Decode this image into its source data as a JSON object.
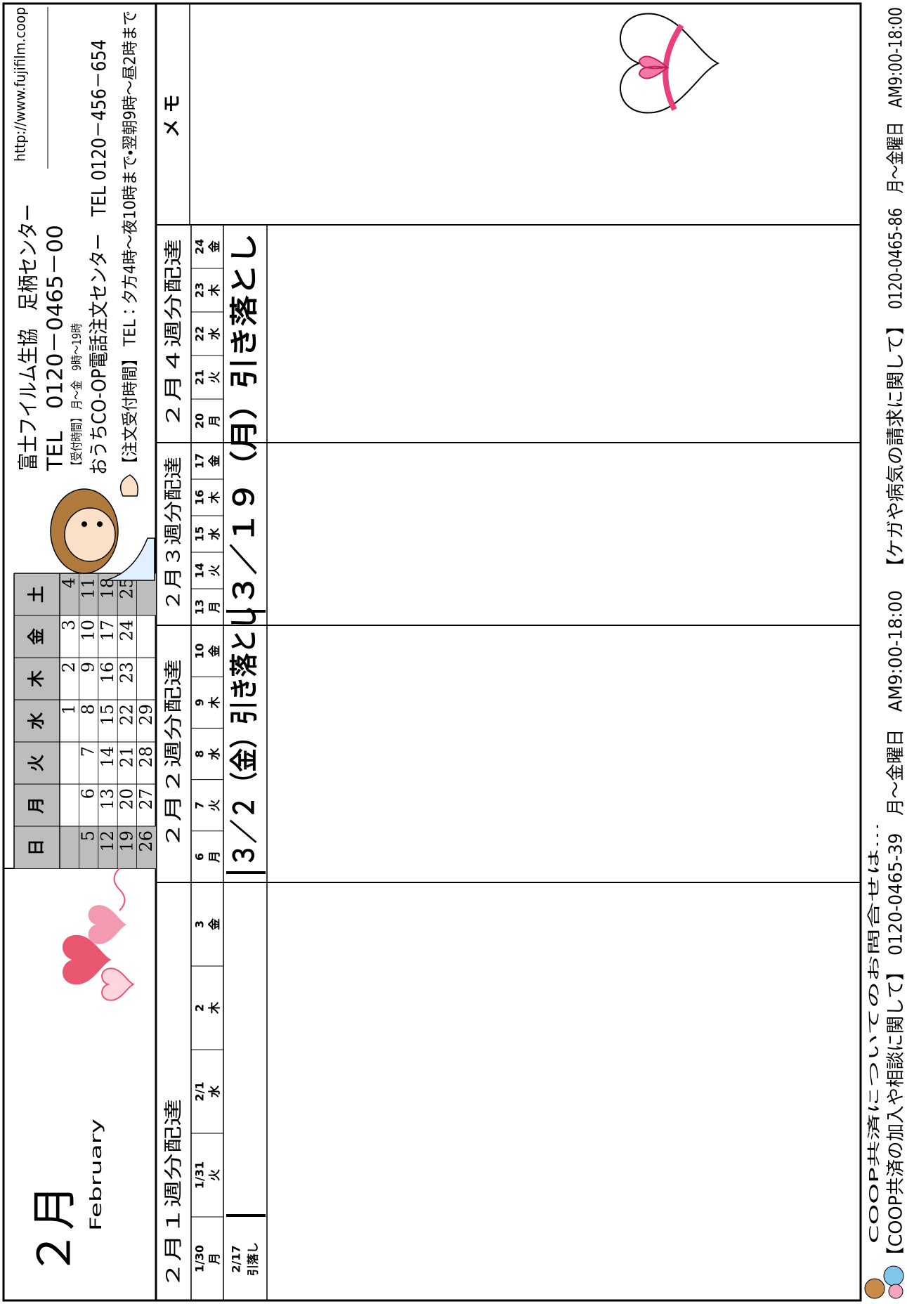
{
  "header": {
    "month": "２月",
    "month_en": "February"
  },
  "calendar": {
    "weekdays": [
      "日",
      "月",
      "火",
      "水",
      "木",
      "金",
      "土"
    ],
    "weeks": [
      [
        null,
        null,
        null,
        1,
        2,
        3,
        4
      ],
      [
        5,
        6,
        7,
        8,
        9,
        10,
        11
      ],
      [
        12,
        13,
        14,
        15,
        16,
        17,
        18
      ],
      [
        19,
        20,
        21,
        22,
        23,
        24,
        25
      ],
      [
        26,
        27,
        28,
        29,
        null,
        null,
        null
      ]
    ]
  },
  "contact": {
    "center": "富士フイルム生協　足柄センター",
    "tel": "TEL　0120－0465－00",
    "hours": "【受付時間】 月～金　9時～19時",
    "url": "http://www.fujifilm.coop",
    "order_center": "おうちCO-OP電話注文センター　TEL 0120－456－654",
    "order_hours": "【注文受付時間】 TEL：夕方4時～夜10時まで・翌朝9時～昼2時まで"
  },
  "weeks": [
    {
      "title": "２月１週分配達",
      "days": [
        {
          "date": "1/30",
          "weekday": "月"
        },
        {
          "date": "1/31",
          "weekday": "火"
        },
        {
          "date": "2/1",
          "weekday": "水"
        },
        {
          "date": "2",
          "weekday": "木"
        },
        {
          "date": "3",
          "weekday": "金"
        }
      ],
      "debit": [
        "2/17",
        "引落し"
      ]
    },
    {
      "title": "２月２週分配達",
      "days": [
        {
          "date": "6",
          "weekday": "月"
        },
        {
          "date": "7",
          "weekday": "火"
        },
        {
          "date": "8",
          "weekday": "水"
        },
        {
          "date": "9",
          "weekday": "木"
        },
        {
          "date": "10",
          "weekday": "金"
        }
      ]
    },
    {
      "title": "２月３週分配達",
      "days": [
        {
          "date": "13",
          "weekday": "月"
        },
        {
          "date": "14",
          "weekday": "火"
        },
        {
          "date": "15",
          "weekday": "水"
        },
        {
          "date": "16",
          "weekday": "木"
        },
        {
          "date": "17",
          "weekday": "金"
        }
      ]
    },
    {
      "title": "２月４週分配達",
      "days": [
        {
          "date": "20",
          "weekday": "月"
        },
        {
          "date": "21",
          "weekday": "火"
        },
        {
          "date": "22",
          "weekday": "水"
        },
        {
          "date": "23",
          "weekday": "木"
        },
        {
          "date": "24",
          "weekday": "金"
        }
      ]
    }
  ],
  "debits": [
    "３／２（金）引き落とし",
    "３／１９（月）引き落とし"
  ],
  "memo": {
    "title": "メ モ"
  },
  "footer": {
    "intro": "COOP共済についてのお問合せは…",
    "lines": [
      "【COOP共済の加入や相談に関して】",
      "0120-0465-39　月～金曜日　AM9:00-18:00",
      "【ケガや病気の請求に関して】",
      "0120-0465-86　月～金曜日　AM9:00-18:00"
    ]
  }
}
